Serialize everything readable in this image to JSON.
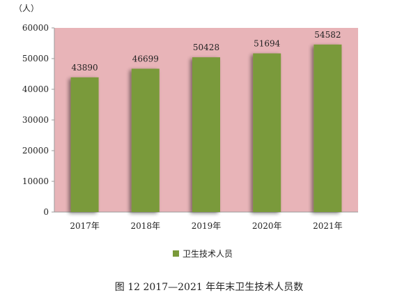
{
  "chart_data": {
    "type": "bar",
    "unit": "（人）",
    "categories": [
      "2017年",
      "2018年",
      "2019年",
      "2020年",
      "2021年"
    ],
    "series": [
      {
        "name": "卫生技术人员",
        "values": [
          43890,
          46699,
          50428,
          51694,
          54582
        ],
        "color": "#7a9a3a"
      }
    ],
    "ylim": [
      0,
      60000
    ],
    "yticks": [
      "0",
      "10000",
      "20000",
      "30000",
      "40000",
      "50000",
      "60000"
    ],
    "yticks_values": [
      0,
      10000,
      20000,
      30000,
      40000,
      50000,
      60000
    ],
    "grid": false,
    "legend_position": "bottom",
    "plot_background": "#e8b4b8",
    "caption": "图 12 2017—2021 年年末卫生技术人员数"
  }
}
